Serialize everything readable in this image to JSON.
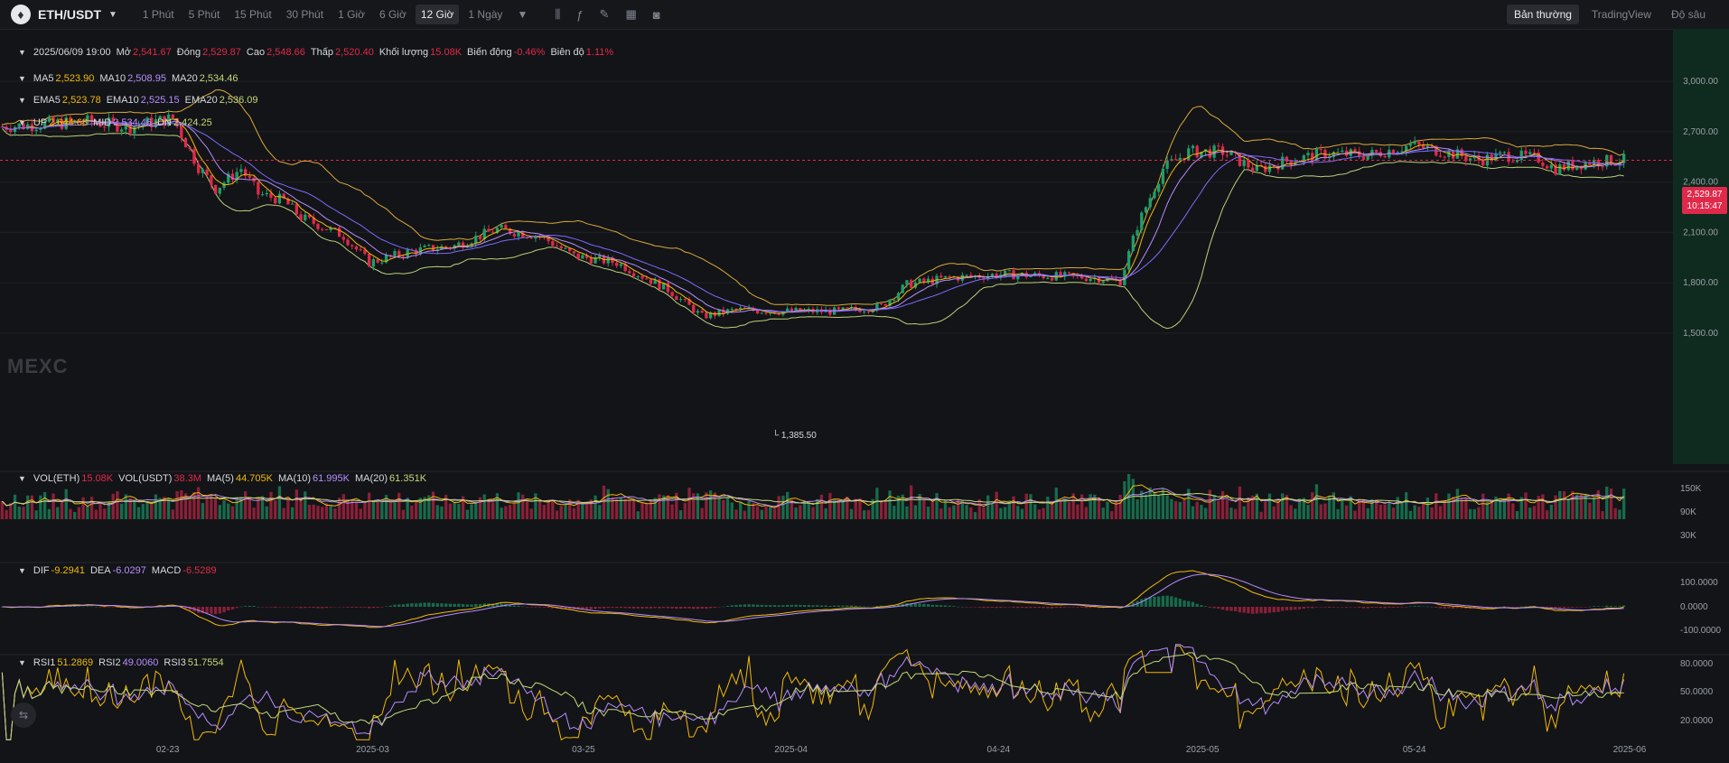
{
  "header": {
    "pair": "ETH/USDT",
    "intervals": [
      "1 Phút",
      "5 Phút",
      "15 Phút",
      "30 Phút",
      "1 Giờ",
      "6 Giờ",
      "12 Giờ",
      "1 Ngày"
    ],
    "active_interval": "12 Giờ",
    "views": [
      "Bản thường",
      "TradingView",
      "Độ sâu"
    ],
    "active_view": "Bản thường"
  },
  "ohlc_legend": {
    "date": "2025/06/09 19:00",
    "open_label": "Mở",
    "open": "2,541.67",
    "close_label": "Đóng",
    "close": "2,529.87",
    "high_label": "Cao",
    "high": "2,548.66",
    "low_label": "Thấp",
    "low": "2,520.40",
    "volume_label": "Khối lượng",
    "volume": "15.08K",
    "change_label": "Biến động",
    "change": "-0.46%",
    "amplitude_label": "Biên độ",
    "amplitude": "1.11%"
  },
  "ma_legend": [
    {
      "label": "MA5",
      "value": "2,523.90",
      "color": "#f0b90b"
    },
    {
      "label": "MA10",
      "value": "2,508.95",
      "color": "#b78dff"
    },
    {
      "label": "MA20",
      "value": "2,534.46",
      "color": "#c3d87a"
    }
  ],
  "ema_legend": [
    {
      "label": "EMA5",
      "value": "2,523.78",
      "color": "#f0b90b"
    },
    {
      "label": "EMA10",
      "value": "2,525.15",
      "color": "#b78dff"
    },
    {
      "label": "EMA20",
      "value": "2,536.09",
      "color": "#c3d87a"
    }
  ],
  "boll_legend": [
    {
      "label": "UP",
      "value": "2,644.68",
      "color": "#f0b90b"
    },
    {
      "label": "MID",
      "value": "2,534.46",
      "color": "#b78dff"
    },
    {
      "label": "DN",
      "value": "2,424.25",
      "color": "#c3d87a"
    }
  ],
  "vol_legend": [
    {
      "label": "VOL(ETH)",
      "value": "15.08K",
      "color": "#e0294a"
    },
    {
      "label": "VOL(USDT)",
      "value": "38.3M",
      "color": "#e0294a"
    },
    {
      "label": "MA(5)",
      "value": "44.705K",
      "color": "#f0b90b"
    },
    {
      "label": "MA(10)",
      "value": "61.995K",
      "color": "#b78dff"
    },
    {
      "label": "MA(20)",
      "value": "61.351K",
      "color": "#c3d87a"
    }
  ],
  "macd_legend": [
    {
      "label": "DIF",
      "value": "-9.2941",
      "color": "#f0b90b"
    },
    {
      "label": "DEA",
      "value": "-6.0297",
      "color": "#b78dff"
    },
    {
      "label": "MACD",
      "value": "-6.5289",
      "color": "#e0294a"
    }
  ],
  "rsi_legend": [
    {
      "label": "RSI1",
      "value": "51.2869",
      "color": "#f0b90b"
    },
    {
      "label": "RSI2",
      "value": "49.0060",
      "color": "#b78dff"
    },
    {
      "label": "RSI3",
      "value": "51.7554",
      "color": "#c3d87a"
    }
  ],
  "watermark": "MEXC",
  "current_price": "2,529.87",
  "countdown": "10:15:47",
  "low_marker": "1,385.50",
  "colors": {
    "up": "#1e9e6a",
    "down": "#e0294a",
    "bg": "#131417",
    "grid": "#1f2125"
  },
  "chart_data": {
    "type": "candlestick",
    "price_axis": {
      "ticks": [
        "3,000.00",
        "2,700.00",
        "2,400.00",
        "2,100.00",
        "1,800.00",
        "1,500.00"
      ],
      "values": [
        3000,
        2700,
        2400,
        2100,
        1800,
        1500
      ]
    },
    "volume_axis": {
      "ticks": [
        "150K",
        "90K",
        "30K"
      ]
    },
    "macd_axis": {
      "ticks": [
        "100.0000",
        "0.0000",
        "-100.0000"
      ]
    },
    "rsi_axis": {
      "ticks": [
        "80.0000",
        "50.0000",
        "20.0000"
      ]
    },
    "x_axis_labels": [
      "02-23",
      "2025-03",
      "03-25",
      "2025-04",
      "04-24",
      "2025-05",
      "05-24",
      "2025-06"
    ],
    "price_anchors": [
      [
        0,
        2730
      ],
      [
        20,
        2760
      ],
      [
        30,
        2730
      ],
      [
        40,
        2780
      ],
      [
        46,
        2490
      ],
      [
        50,
        2360
      ],
      [
        56,
        2480
      ],
      [
        60,
        2330
      ],
      [
        66,
        2290
      ],
      [
        70,
        2190
      ],
      [
        80,
        2080
      ],
      [
        86,
        1920
      ],
      [
        96,
        1990
      ],
      [
        106,
        2020
      ],
      [
        116,
        2120
      ],
      [
        126,
        2080
      ],
      [
        134,
        1960
      ],
      [
        144,
        1920
      ],
      [
        156,
        1760
      ],
      [
        164,
        1600
      ],
      [
        172,
        1640
      ],
      [
        182,
        1630
      ],
      [
        196,
        1630
      ],
      [
        206,
        1660
      ],
      [
        212,
        1790
      ],
      [
        222,
        1830
      ],
      [
        234,
        1850
      ],
      [
        246,
        1840
      ],
      [
        256,
        1830
      ],
      [
        262,
        1810
      ],
      [
        266,
        2140
      ],
      [
        272,
        2480
      ],
      [
        278,
        2580
      ],
      [
        286,
        2580
      ],
      [
        294,
        2470
      ],
      [
        300,
        2520
      ],
      [
        310,
        2570
      ],
      [
        320,
        2560
      ],
      [
        330,
        2620
      ],
      [
        338,
        2580
      ],
      [
        346,
        2530
      ],
      [
        352,
        2560
      ],
      [
        360,
        2540
      ],
      [
        364,
        2480
      ],
      [
        372,
        2520
      ],
      [
        380,
        2530
      ]
    ],
    "n_candles": 381
  }
}
